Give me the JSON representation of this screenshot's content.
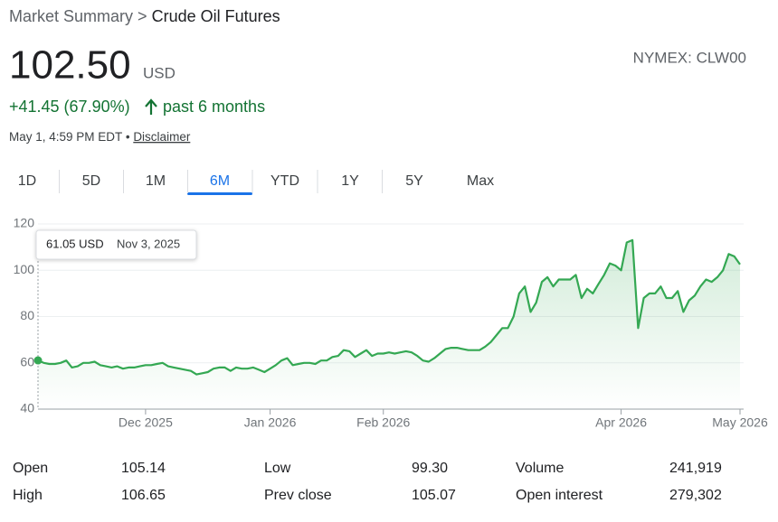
{
  "breadcrumb": {
    "parent": "Market Summary",
    "separator": ">",
    "current": "Crude Oil Futures"
  },
  "quote": {
    "price": "102.50",
    "currency": "USD",
    "exchange": "NYMEX: CLW00",
    "change": "+41.45 (67.90%)",
    "period": "past 6 months",
    "timestamp": "May 1, 4:59 PM EDT",
    "dot": "•",
    "disclaimer": "Disclaimer"
  },
  "tabs": {
    "items": [
      "1D",
      "5D",
      "1M",
      "6M",
      "YTD",
      "1Y",
      "5Y",
      "Max"
    ],
    "active": "6M"
  },
  "chart_data": {
    "type": "line",
    "tooltip": {
      "value_label": "61.05 USD",
      "date": "Nov 3, 2025"
    },
    "color": "#34a853",
    "grid": true,
    "ylim": [
      40,
      120
    ],
    "yticks": [
      40,
      60,
      80,
      100,
      120
    ],
    "categories": [
      null,
      null,
      null,
      null,
      null,
      null,
      null,
      null,
      null,
      null,
      null,
      null,
      null,
      null,
      null,
      null,
      null,
      null,
      null,
      "Dec 2025",
      null,
      null,
      null,
      null,
      null,
      null,
      null,
      null,
      null,
      null,
      null,
      null,
      null,
      null,
      null,
      null,
      null,
      null,
      null,
      null,
      null,
      "Jan 2026",
      null,
      null,
      null,
      null,
      null,
      null,
      null,
      null,
      null,
      null,
      null,
      null,
      null,
      null,
      null,
      null,
      null,
      null,
      null,
      "Feb 2026",
      null,
      null,
      null,
      null,
      null,
      null,
      null,
      null,
      null,
      null,
      null,
      null,
      null,
      null,
      null,
      null,
      null,
      null,
      null,
      null,
      null,
      null,
      null,
      null,
      null,
      null,
      null,
      null,
      null,
      null,
      null,
      null,
      null,
      null,
      null,
      null,
      null,
      null,
      null,
      null,
      null,
      "Apr 2026",
      null,
      null,
      null,
      null,
      null,
      null,
      null,
      null,
      null,
      null,
      null,
      null,
      null,
      null,
      null,
      null,
      null,
      null,
      null,
      null,
      "May 2026"
    ],
    "values": [
      61.05,
      60,
      59.5,
      59.5,
      60,
      61,
      58,
      58.5,
      60,
      60,
      60.5,
      59,
      58.5,
      58,
      58.5,
      57.5,
      58,
      58,
      58.5,
      59,
      59,
      59.5,
      60,
      58.5,
      58,
      57.5,
      57,
      56.5,
      55,
      55.5,
      56,
      57.5,
      58,
      58,
      56.5,
      58,
      57.5,
      57.5,
      58,
      57,
      56,
      57.5,
      59,
      61,
      62,
      59,
      59.5,
      60,
      60,
      59.5,
      61,
      61,
      62.5,
      63,
      65.5,
      65,
      62.5,
      64,
      65.5,
      63,
      64,
      64,
      64.5,
      64,
      64.5,
      65,
      64.5,
      63,
      61,
      60.5,
      62,
      64,
      66,
      66.5,
      66.5,
      66,
      65.5,
      65.5,
      65.5,
      67,
      69,
      72,
      75,
      75,
      80,
      90,
      93,
      82,
      86,
      95,
      97,
      93,
      96,
      96,
      96,
      98,
      88,
      92,
      90,
      94,
      98,
      103,
      102,
      100,
      112,
      113,
      75,
      88,
      90,
      90,
      93,
      88,
      88,
      91,
      82,
      87,
      89,
      93,
      96,
      95,
      97,
      100,
      107,
      106,
      102.5
    ]
  },
  "stats": {
    "rows": [
      [
        "Open",
        "105.14",
        "Low",
        "99.30",
        "Volume",
        "241,919"
      ],
      [
        "High",
        "106.65",
        "Prev close",
        "105.07",
        "Open interest",
        "279,302"
      ]
    ]
  }
}
